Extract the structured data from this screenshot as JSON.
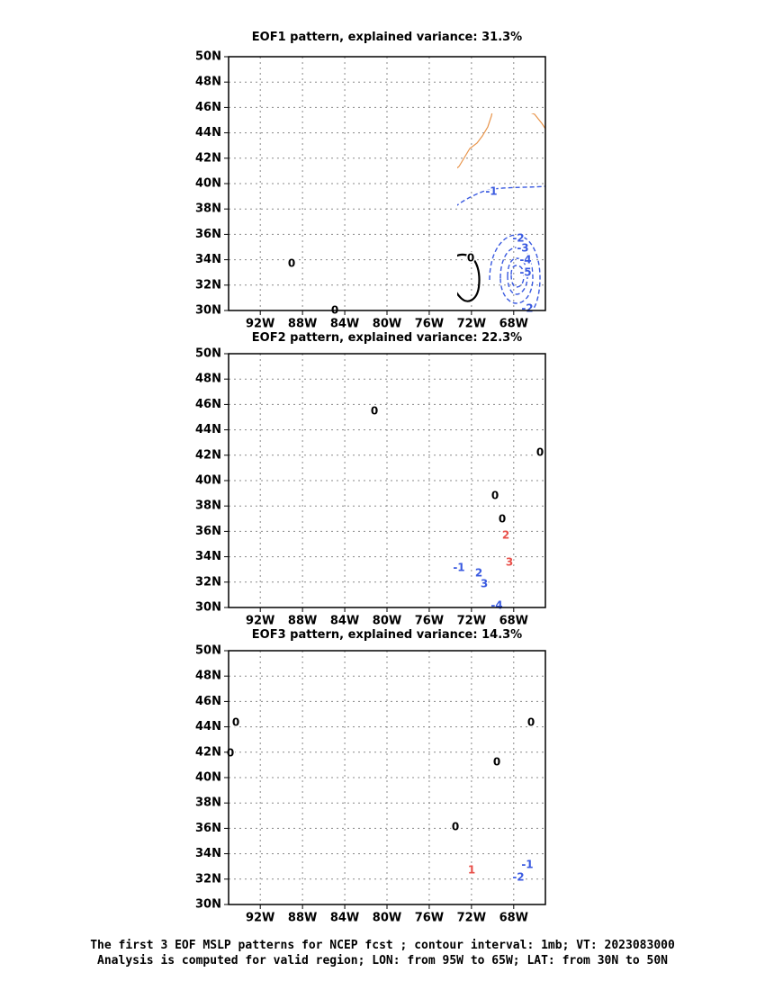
{
  "figure": {
    "lat_labels": [
      "50N",
      "48N",
      "46N",
      "44N",
      "42N",
      "40N",
      "38N",
      "36N",
      "34N",
      "32N",
      "30N"
    ],
    "lon_labels": [
      "92W",
      "88W",
      "84W",
      "80W",
      "76W",
      "72W",
      "68W"
    ],
    "colors": {
      "coast": "#e8944a",
      "zero": "#000000",
      "positive": "#e8504a",
      "negative": "#3a5ae0",
      "grid": "#888888"
    },
    "footer_line1": "The first 3 EOF MSLP patterns for NCEP fcst ; contour interval: 1mb; VT: 2023083000",
    "footer_line2": "Analysis is computed for valid region; LON: from 95W to 65W; LAT: from 30N to 50N"
  },
  "panels": [
    {
      "title": "EOF1 pattern, explained variance: 31.3%",
      "contour_labels": [
        "0",
        "0",
        "0",
        "-1",
        "-2",
        "-3",
        "-4",
        "-5",
        "-2"
      ]
    },
    {
      "title": "EOF2 pattern, explained variance: 22.3%",
      "contour_labels": [
        "0",
        "0",
        "0",
        "0",
        "2",
        "3",
        "-1",
        "2",
        "3",
        "-4"
      ]
    },
    {
      "title": "EOF3 pattern, explained variance: 14.3%",
      "contour_labels": [
        "0",
        "0",
        "0",
        "0",
        "0",
        "1",
        "-1",
        "-2"
      ]
    }
  ]
}
